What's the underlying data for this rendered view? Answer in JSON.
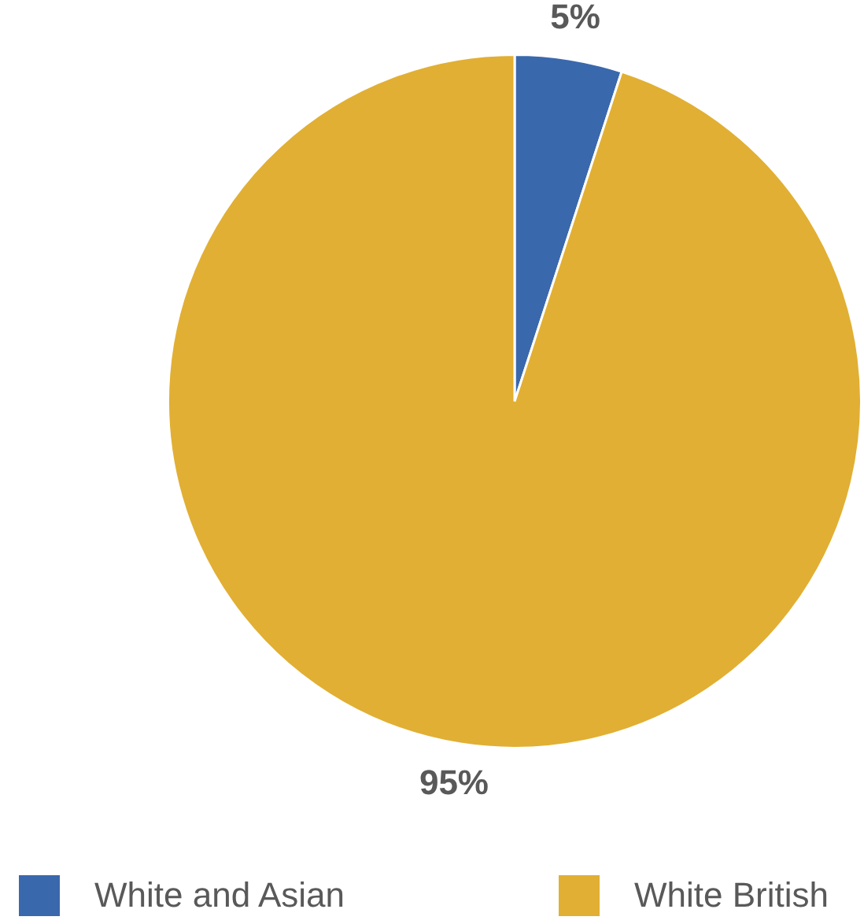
{
  "chart_data": {
    "type": "pie",
    "categories": [
      "White and Asian",
      "White British"
    ],
    "values": [
      5,
      95
    ],
    "value_labels": [
      "5%",
      "95%"
    ],
    "colors": [
      "#3a68ad",
      "#e1af33"
    ],
    "legend": "bottom"
  }
}
